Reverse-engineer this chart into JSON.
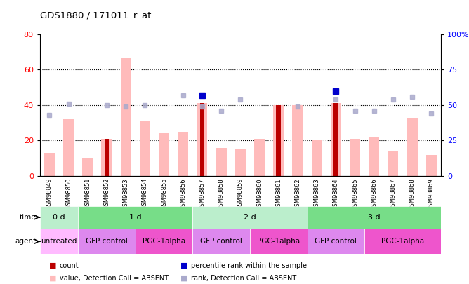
{
  "title": "GDS1880 / 171011_r_at",
  "samples": [
    "GSM98849",
    "GSM98850",
    "GSM98851",
    "GSM98852",
    "GSM98853",
    "GSM98854",
    "GSM98855",
    "GSM98856",
    "GSM98857",
    "GSM98858",
    "GSM98859",
    "GSM98860",
    "GSM98861",
    "GSM98862",
    "GSM98863",
    "GSM98864",
    "GSM98865",
    "GSM98866",
    "GSM98867",
    "GSM98868",
    "GSM98869"
  ],
  "pink_bars": [
    13,
    32,
    10,
    21,
    67,
    31,
    24,
    25,
    41,
    16,
    15,
    21,
    40,
    40,
    20,
    41,
    21,
    22,
    14,
    33,
    12
  ],
  "dark_red_bars": [
    null,
    null,
    null,
    21,
    null,
    null,
    null,
    null,
    41,
    null,
    null,
    null,
    40,
    null,
    null,
    41,
    null,
    null,
    null,
    null,
    null
  ],
  "blue_squares": [
    null,
    null,
    null,
    null,
    null,
    null,
    null,
    null,
    57,
    null,
    null,
    null,
    null,
    null,
    null,
    60,
    null,
    null,
    null,
    null,
    null
  ],
  "light_blue_squares": [
    43,
    51,
    null,
    50,
    49,
    50,
    null,
    57,
    49,
    46,
    54,
    null,
    null,
    49,
    null,
    54,
    46,
    46,
    54,
    56,
    44
  ],
  "time_segments": [
    {
      "label": "0 d",
      "start": 0,
      "end": 2,
      "color": "#bbeecc"
    },
    {
      "label": "1 d",
      "start": 2,
      "end": 8,
      "color": "#77dd88"
    },
    {
      "label": "2 d",
      "start": 8,
      "end": 14,
      "color": "#bbeecc"
    },
    {
      "label": "3 d",
      "start": 14,
      "end": 21,
      "color": "#77dd88"
    }
  ],
  "agent_segments": [
    {
      "label": "untreated",
      "start": 0,
      "end": 2,
      "color": "#ffbbff"
    },
    {
      "label": "GFP control",
      "start": 2,
      "end": 5,
      "color": "#dd88ee"
    },
    {
      "label": "PGC-1alpha",
      "start": 5,
      "end": 8,
      "color": "#ee55cc"
    },
    {
      "label": "GFP control",
      "start": 8,
      "end": 11,
      "color": "#dd88ee"
    },
    {
      "label": "PGC-1alpha",
      "start": 11,
      "end": 14,
      "color": "#ee55cc"
    },
    {
      "label": "GFP control",
      "start": 14,
      "end": 17,
      "color": "#dd88ee"
    },
    {
      "label": "PGC-1alpha",
      "start": 17,
      "end": 21,
      "color": "#ee55cc"
    }
  ],
  "ylim_left": [
    0,
    80
  ],
  "ylim_right": [
    0,
    100
  ],
  "yticks_left": [
    0,
    20,
    40,
    60,
    80
  ],
  "yticks_right": [
    0,
    25,
    50,
    75,
    100
  ],
  "pink_bar_color": "#ffbbbb",
  "dark_red_color": "#bb0000",
  "blue_square_color": "#0000cc",
  "light_blue_square_color": "#aaaacc",
  "legend_items": [
    {
      "label": "count",
      "color": "#bb0000"
    },
    {
      "label": "percentile rank within the sample",
      "color": "#0000cc"
    },
    {
      "label": "value, Detection Call = ABSENT",
      "color": "#ffbbbb"
    },
    {
      "label": "rank, Detection Call = ABSENT",
      "color": "#aaaacc"
    }
  ]
}
